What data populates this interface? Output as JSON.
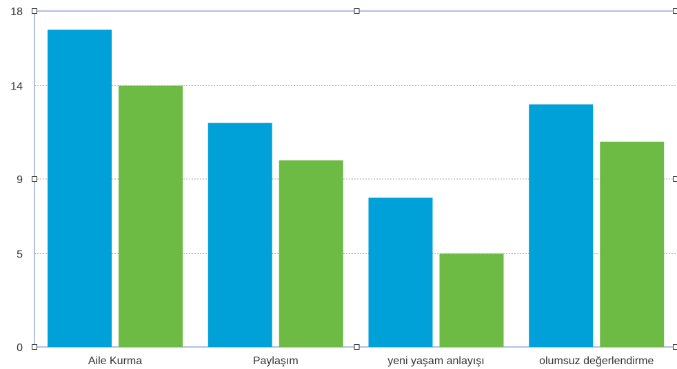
{
  "colors": {
    "series1": "#00a0d8",
    "series2": "#6dbb45",
    "frame": "#7f9bd6",
    "grid": "#a9a9a9"
  },
  "chart_data": {
    "type": "bar",
    "title": "",
    "xlabel": "",
    "ylabel": "",
    "categories": [
      "Aile Kurma",
      "Paylaşım",
      "yeni yaşam anlayışı",
      "olumsuz değerlendirme"
    ],
    "series": [
      {
        "values": [
          17,
          12,
          8,
          13
        ]
      },
      {
        "values": [
          14,
          10,
          5,
          11
        ]
      }
    ],
    "yticks": [
      0,
      5,
      9,
      14,
      18
    ],
    "ylim": [
      0,
      18
    ],
    "grid": true,
    "legend": "none"
  }
}
